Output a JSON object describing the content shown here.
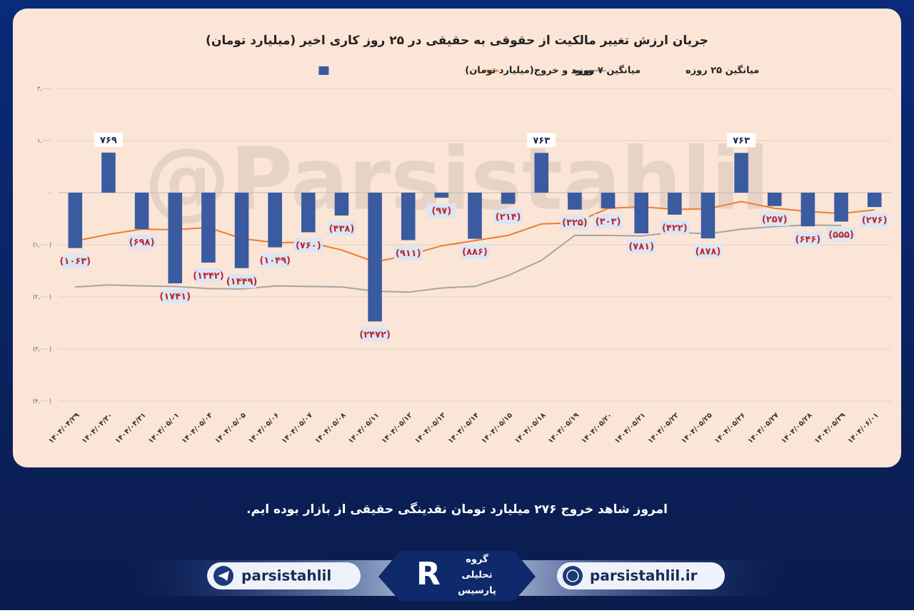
{
  "chart_data": {
    "type": "bar",
    "title": "جریان ارزش تغییر مالکیت از حقوقی به حقیقی در ۲۵ روز کاری اخیر (میلیارد تومان)",
    "categories": [
      "۱۴۰۴/۰۴/۲۹",
      "۱۴۰۴/۰۴/۳۰",
      "۱۴۰۴/۰۴/۳۱",
      "۱۴۰۴/۰۵/۰۱",
      "۱۴۰۴/۰۵/۰۴",
      "۱۴۰۴/۰۵/۰۵",
      "۱۴۰۴/۰۵/۰۶",
      "۱۴۰۴/۰۵/۰۷",
      "۱۴۰۴/۰۵/۰۸",
      "۱۴۰۴/۰۵/۱۱",
      "۱۴۰۴/۰۵/۱۲",
      "۱۴۰۴/۰۵/۱۳",
      "۱۴۰۴/۰۵/۱۴",
      "۱۴۰۴/۰۵/۱۵",
      "۱۴۰۴/۰۵/۱۸",
      "۱۴۰۴/۰۵/۱۹",
      "۱۴۰۴/۰۵/۲۰",
      "۱۴۰۴/۰۵/۲۱",
      "۱۴۰۴/۰۵/۲۲",
      "۱۴۰۴/۰۵/۲۵",
      "۱۴۰۴/۰۵/۲۶",
      "۱۴۰۴/۰۵/۲۷",
      "۱۴۰۴/۰۵/۲۸",
      "۱۴۰۴/۰۵/۲۹",
      "۱۴۰۴/۰۶/۰۱"
    ],
    "series": [
      {
        "name": "ورود و خروج(میلیارد تومان)",
        "type": "bar",
        "color": "#3a5ba0",
        "values": [
          -1063,
          769,
          -698,
          -1741,
          -1342,
          -1449,
          -1049,
          -760,
          -438,
          -2472,
          -911,
          -97,
          -886,
          -214,
          763,
          -325,
          -303,
          -781,
          -422,
          -878,
          763,
          -257,
          -646,
          -555,
          -276
        ],
        "value_labels": [
          "(۱۰۶۳)",
          "۷۶۹",
          "(۶۹۸)",
          "(۱۷۴۱)",
          "(۱۳۴۲)",
          "(۱۴۴۹)",
          "(۱۰۴۹)",
          "(۷۶۰)",
          "(۴۳۸)",
          "(۲۴۷۲)",
          "(۹۱۱)",
          "(۹۷)",
          "(۸۸۶)",
          "(۲۱۴)",
          "۷۶۳",
          "(۳۲۵)",
          "(۳۰۳)",
          "(۷۸۱)",
          "(۴۲۲)",
          "(۸۷۸)",
          "۷۶۳",
          "(۲۵۷)",
          "(۶۴۶)",
          "(۵۵۵)",
          "(۲۷۶)"
        ]
      },
      {
        "name": "میانگین ۷ روزه",
        "type": "line",
        "color": "#ed7d31",
        "values": [
          -930,
          -800,
          -700,
          -710,
          -670,
          -880,
          -960,
          -950,
          -1100,
          -1330,
          -1200,
          -1020,
          -920,
          -820,
          -600,
          -580,
          -300,
          -270,
          -320,
          -310,
          -170,
          -300,
          -360,
          -400,
          -330
        ]
      },
      {
        "name": "میانگین ۲۵ روزه",
        "type": "line",
        "color": "#a5a5a5",
        "values": [
          -1810,
          -1770,
          -1790,
          -1800,
          -1840,
          -1850,
          -1790,
          -1800,
          -1810,
          -1890,
          -1910,
          -1830,
          -1800,
          -1590,
          -1300,
          -820,
          -820,
          -830,
          -760,
          -790,
          -700,
          -650,
          -620,
          -630,
          null
        ]
      }
    ],
    "ylim": [
      -4000,
      2000
    ],
    "yticks": [
      {
        "value": 2000,
        "label": "۲,۰۰۰"
      },
      {
        "value": 1000,
        "label": "۱,۰۰۰"
      },
      {
        "value": 0,
        "label": "۰"
      },
      {
        "value": -1000,
        "label": "(۱,۰۰۰)"
      },
      {
        "value": -2000,
        "label": "(۲,۰۰۰)"
      },
      {
        "value": -3000,
        "label": "(۳,۰۰۰)"
      },
      {
        "value": -4000,
        "label": "(۴,۰۰۰)"
      }
    ],
    "grid": true,
    "legend": "top"
  },
  "watermark": "@Parsistahlil",
  "caption": "امروز شاهد خروج ۲۷۶ میلیارد تومان نقدینگی حقیقی از بازار بوده ایم.",
  "footer": {
    "telegram": "parsistahlil",
    "website": "parsistahlil.ir",
    "logo": [
      "گروه",
      "تحلیلی",
      "پارسیس"
    ]
  }
}
